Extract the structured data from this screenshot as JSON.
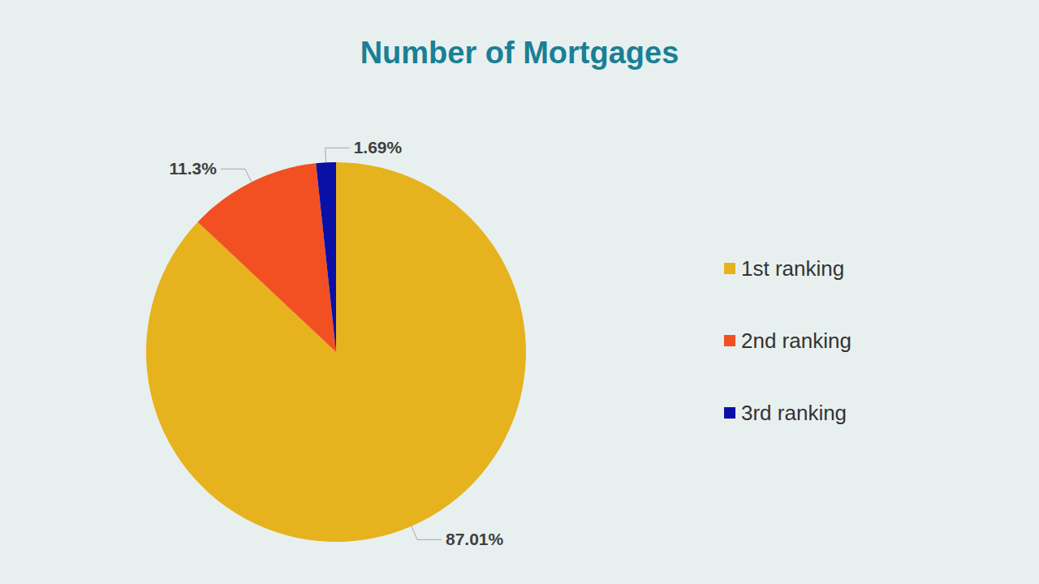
{
  "chart_data": {
    "type": "pie",
    "title": "Number of Mortgages",
    "categories": [
      "1st ranking",
      "2nd ranking",
      "3rd ranking"
    ],
    "values": [
      87.01,
      11.3,
      1.69
    ],
    "value_labels": [
      "87.01%",
      "11.3%",
      "1.69%"
    ],
    "colors": [
      "#E6B31E",
      "#F25022",
      "#0A0FA6"
    ],
    "data_labels": true,
    "legend": "right"
  }
}
